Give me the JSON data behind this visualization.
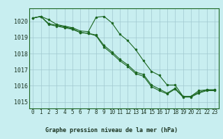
{
  "title": "Graphe pression niveau de la mer (hPa)",
  "background_color": "#c8eef0",
  "grid_color": "#a0c8d0",
  "line_color": "#1a6620",
  "x_ticks": [
    0,
    1,
    2,
    3,
    4,
    5,
    6,
    7,
    8,
    9,
    10,
    11,
    12,
    13,
    14,
    15,
    16,
    17,
    18,
    19,
    20,
    21,
    22,
    23
  ],
  "y_ticks": [
    1015,
    1016,
    1017,
    1018,
    1019,
    1020
  ],
  "ylim": [
    1014.6,
    1020.8
  ],
  "xlim": [
    -0.5,
    23.5
  ],
  "series1": [
    1020.2,
    1020.3,
    1020.1,
    1019.8,
    1019.7,
    1019.6,
    1019.4,
    1019.35,
    1020.25,
    1020.3,
    1019.9,
    1019.2,
    1018.8,
    1018.25,
    1017.55,
    1016.9,
    1016.65,
    1016.05,
    1016.05,
    1015.35,
    1015.35,
    1015.7,
    1015.75,
    1015.75
  ],
  "series2": [
    1020.2,
    1020.3,
    1019.85,
    1019.75,
    1019.65,
    1019.55,
    1019.3,
    1019.25,
    1019.15,
    1018.5,
    1018.1,
    1017.65,
    1017.3,
    1016.85,
    1016.7,
    1016.05,
    1015.8,
    1015.55,
    1015.85,
    1015.35,
    1015.35,
    1015.6,
    1015.75,
    1015.75
  ],
  "series3": [
    1020.2,
    1020.3,
    1019.8,
    1019.7,
    1019.6,
    1019.5,
    1019.3,
    1019.25,
    1019.1,
    1018.4,
    1018.0,
    1017.55,
    1017.2,
    1016.75,
    1016.6,
    1015.95,
    1015.7,
    1015.5,
    1015.8,
    1015.3,
    1015.3,
    1015.55,
    1015.7,
    1015.7
  ],
  "tick_fontsize": 5.5,
  "title_fontsize": 6.0,
  "marker_size": 2.0,
  "line_width": 0.8
}
